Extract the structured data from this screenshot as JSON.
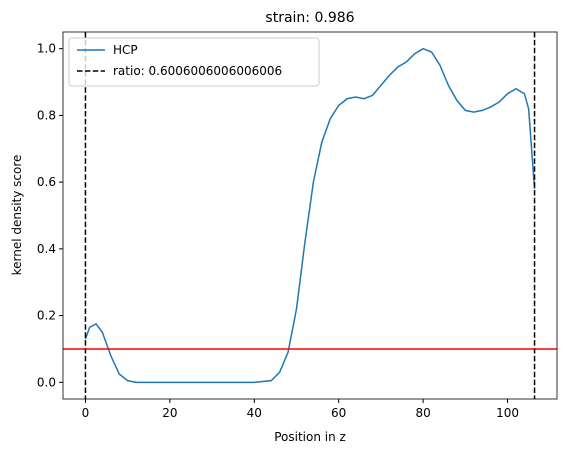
{
  "chart_data": {
    "type": "line",
    "title": "strain: 0.986",
    "xlabel": "Position in z",
    "ylabel": "kernel density score",
    "x": [
      0,
      1,
      2.5,
      4,
      6,
      8,
      10,
      12,
      20,
      30,
      40,
      44,
      46,
      48,
      50,
      52,
      54,
      56,
      58,
      60,
      62,
      64,
      66,
      68,
      70,
      72,
      74,
      76,
      78,
      80,
      82,
      84,
      86,
      88,
      90,
      92,
      94,
      96,
      98,
      100,
      102,
      104,
      105,
      106.4
    ],
    "series": [
      {
        "name": "HCP",
        "color": "#1f77b4",
        "values": [
          0.13,
          0.165,
          0.175,
          0.15,
          0.08,
          0.025,
          0.005,
          0.0,
          0,
          0,
          0,
          0.005,
          0.03,
          0.09,
          0.22,
          0.42,
          0.6,
          0.72,
          0.79,
          0.83,
          0.85,
          0.855,
          0.85,
          0.86,
          0.89,
          0.92,
          0.945,
          0.96,
          0.985,
          1.0,
          0.99,
          0.95,
          0.89,
          0.845,
          0.815,
          0.81,
          0.815,
          0.825,
          0.84,
          0.865,
          0.88,
          0.865,
          0.82,
          0.58
        ]
      }
    ],
    "vlines": {
      "name": "ratio: 0.6006006006006006",
      "color": "#000000",
      "x": [
        0,
        106.4
      ]
    },
    "hline": {
      "y": 0.1,
      "color": "#ff0000"
    },
    "xlim": [
      -5.32,
      111.72
    ],
    "ylim": [
      -0.05,
      1.05
    ],
    "xticks": [
      0,
      20,
      40,
      60,
      80,
      100
    ],
    "yticks": [
      {
        "value": 0,
        "label": "0.0"
      },
      0.2,
      0.4,
      0.6,
      0.8,
      {
        "value": 1,
        "label": "1.0"
      }
    ],
    "legend": "upper left"
  }
}
